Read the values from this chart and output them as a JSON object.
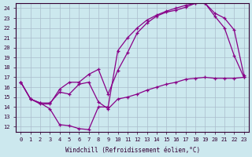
{
  "xlabel": "Windchill (Refroidissement éolien,°C)",
  "xlim": [
    -0.5,
    23.5
  ],
  "ylim": [
    11.5,
    24.5
  ],
  "xticks": [
    0,
    1,
    2,
    3,
    4,
    5,
    6,
    7,
    8,
    9,
    10,
    11,
    12,
    13,
    14,
    15,
    16,
    17,
    18,
    19,
    20,
    21,
    22,
    23
  ],
  "yticks": [
    12,
    13,
    14,
    15,
    16,
    17,
    18,
    19,
    20,
    21,
    22,
    23,
    24
  ],
  "background_color": "#cce8ee",
  "grid_color": "#aabccc",
  "line_color": "#880088",
  "line1_x": [
    0,
    1,
    2,
    3,
    4,
    5,
    6,
    7,
    8,
    9,
    10,
    11,
    12,
    13,
    14,
    15,
    16,
    17,
    18,
    19,
    20,
    21,
    22,
    23
  ],
  "line1_y": [
    16.5,
    14.8,
    14.4,
    13.8,
    12.2,
    12.1,
    11.8,
    11.7,
    14.0,
    14.0,
    19.7,
    21.0,
    22.0,
    22.8,
    23.3,
    23.7,
    24.0,
    24.3,
    24.5,
    24.5,
    23.2,
    22.0,
    19.2,
    17.0
  ],
  "line2_x": [
    0,
    1,
    2,
    3,
    4,
    5,
    6,
    7,
    8,
    9,
    10,
    11,
    12,
    13,
    14,
    15,
    16,
    17,
    18,
    19,
    20,
    21,
    22,
    23
  ],
  "line2_y": [
    16.5,
    14.8,
    14.3,
    14.3,
    15.8,
    16.5,
    16.5,
    17.3,
    17.8,
    15.3,
    17.7,
    19.5,
    21.5,
    22.5,
    23.2,
    23.6,
    23.8,
    24.1,
    24.5,
    24.5,
    23.5,
    23.0,
    21.8,
    17.2
  ],
  "line3_x": [
    0,
    1,
    2,
    3,
    4,
    5,
    6,
    7,
    8,
    9,
    10,
    11,
    12,
    13,
    14,
    15,
    16,
    17,
    18,
    19,
    20,
    21,
    22,
    23
  ],
  "line3_y": [
    16.5,
    14.8,
    14.4,
    14.4,
    15.5,
    15.3,
    16.3,
    16.5,
    14.5,
    13.8,
    14.8,
    15.0,
    15.3,
    15.7,
    16.0,
    16.3,
    16.5,
    16.8,
    16.9,
    17.0,
    16.9,
    16.9,
    16.9,
    17.0
  ]
}
